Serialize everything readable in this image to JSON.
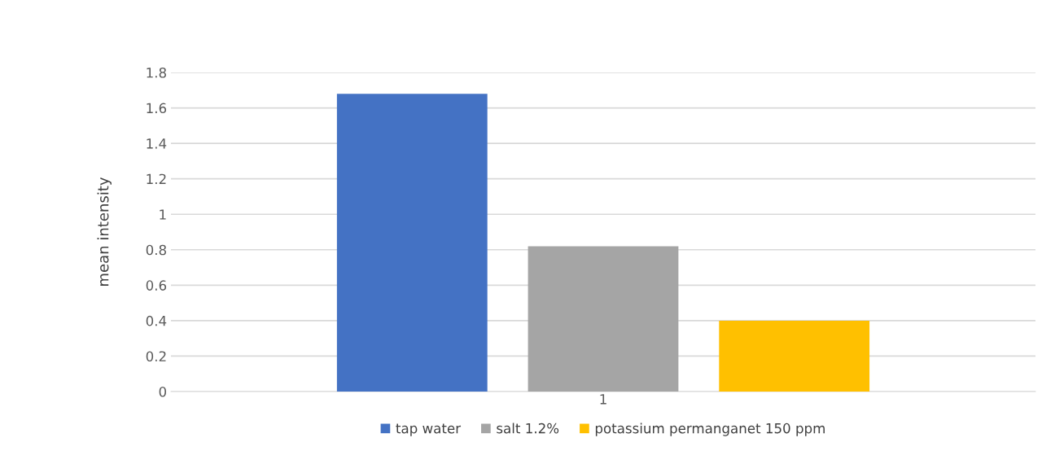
{
  "chart_data": {
    "type": "bar",
    "ylabel": "mean intensity",
    "categories": [
      "1"
    ],
    "series": [
      {
        "name": "tap water",
        "color": "#4472c4",
        "values": [
          1.68
        ]
      },
      {
        "name": "salt 1.2%",
        "color": "#a5a5a5",
        "values": [
          0.82
        ]
      },
      {
        "name": "potassium permanganet 150 ppm",
        "color": "#ffc000",
        "values": [
          0.4
        ]
      }
    ],
    "ylim": [
      0,
      1.8
    ],
    "yticks": [
      0,
      0.2,
      0.4,
      0.6,
      0.8,
      1,
      1.2,
      1.4,
      1.6,
      1.8
    ],
    "grid": "y",
    "legend": "bottom"
  }
}
